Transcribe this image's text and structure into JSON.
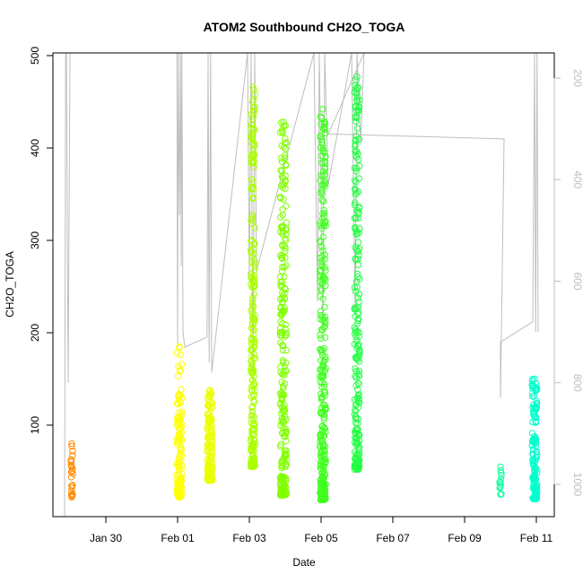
{
  "chart_data": {
    "type": "scatter",
    "title": "ATOM2 Southbound CH2O_TOGA",
    "xlabel": "Date",
    "ylabel": "CH2O_TOGA",
    "xlim": [
      -2.4,
      11.4
    ],
    "x_unit": "days from Jan 30",
    "ylim": [
      10,
      505
    ],
    "y_ticks": [
      100,
      200,
      300,
      400,
      500
    ],
    "x_ticks": [
      {
        "value": 0,
        "label": "Jan 30"
      },
      {
        "value": 2,
        "label": "Feb 01"
      },
      {
        "value": 4,
        "label": "Feb 03"
      },
      {
        "value": 6,
        "label": "Feb 05"
      },
      {
        "value": 8,
        "label": "Feb 07"
      },
      {
        "value": 10,
        "label": "Feb 09"
      },
      {
        "value": 12,
        "label": "Feb 11"
      }
    ],
    "right_axis": {
      "ticks": [
        200,
        400,
        600,
        800,
        1000
      ],
      "inverted": true,
      "color": "#bebebe"
    },
    "colors": {
      "leg_jan28": "#ff8c00",
      "leg_feb01": "#ffff00",
      "leg_feb0110": "#eaff00",
      "leg_feb03": "#aaff00",
      "leg_feb04": "#80ff00",
      "leg_feb05": "#40ff20",
      "leg_feb06": "#22ff44",
      "leg_feb10": "#10ffa0",
      "leg_feb11": "#00ffcc",
      "altitude_trace": "#bebebe"
    },
    "series": [
      {
        "group": "leg_jan28",
        "x_center": -0.95,
        "x_spread": 0.03,
        "y_min": 22,
        "y_max": 80,
        "count": 22
      },
      {
        "group": "leg_feb01",
        "x_center": 2.05,
        "x_spread": 0.07,
        "y_min": 22,
        "y_max": 185,
        "count": 120
      },
      {
        "group": "leg_feb0110",
        "x_center": 2.9,
        "x_spread": 0.07,
        "y_min": 40,
        "y_max": 138,
        "count": 140
      },
      {
        "group": "leg_feb03",
        "x_center": 4.1,
        "x_spread": 0.06,
        "y_min": 55,
        "y_max": 466,
        "count": 230
      },
      {
        "group": "leg_feb04",
        "x_center": 4.95,
        "x_spread": 0.09,
        "y_min": 24,
        "y_max": 428,
        "count": 240
      },
      {
        "group": "leg_feb05",
        "x_center": 6.05,
        "x_spread": 0.08,
        "y_min": 19,
        "y_max": 442,
        "count": 280
      },
      {
        "group": "leg_feb06",
        "x_center": 7.0,
        "x_spread": 0.07,
        "y_min": 52,
        "y_max": 477,
        "count": 220
      },
      {
        "group": "leg_feb10",
        "x_center": 11.0,
        "x_spread": 0.03,
        "y_min": 25,
        "y_max": 55,
        "count": 12
      },
      {
        "group": "leg_feb11",
        "x_center": 11.95,
        "x_spread": 0.07,
        "y_min": 20,
        "y_max": 150,
        "count": 130
      }
    ],
    "altitude_trace": [
      [
        -1.15,
        1150
      ],
      [
        -1.12,
        80
      ],
      [
        -1.1,
        80
      ],
      [
        -1.05,
        800
      ],
      [
        -1.0,
        80
      ],
      [
        1.98,
        80
      ],
      [
        2.0,
        730
      ],
      [
        2.02,
        80
      ],
      [
        2.05,
        470
      ],
      [
        2.08,
        80
      ],
      [
        2.1,
        570
      ],
      [
        2.12,
        80
      ],
      [
        2.15,
        700
      ],
      [
        2.2,
        730
      ],
      [
        2.82,
        710
      ],
      [
        2.85,
        80
      ],
      [
        2.88,
        760
      ],
      [
        2.92,
        80
      ],
      [
        2.95,
        780
      ],
      [
        3.95,
        80
      ],
      [
        4.0,
        600
      ],
      [
        4.05,
        80
      ],
      [
        4.1,
        800
      ],
      [
        4.15,
        80
      ],
      [
        4.2,
        580
      ],
      [
        5.8,
        80
      ],
      [
        5.9,
        640
      ],
      [
        5.95,
        80
      ],
      [
        6.05,
        690
      ],
      [
        6.1,
        80
      ],
      [
        6.2,
        410
      ],
      [
        6.85,
        80
      ],
      [
        6.95,
        660
      ],
      [
        7.0,
        80
      ],
      [
        7.1,
        330
      ],
      [
        7.2,
        80
      ],
      [
        6.2,
        310
      ],
      [
        11.1,
        320
      ],
      [
        11.0,
        830
      ],
      [
        11.0,
        720
      ],
      [
        11.9,
        680
      ],
      [
        11.95,
        80
      ],
      [
        11.98,
        700
      ],
      [
        12.02,
        80
      ],
      [
        12.05,
        700
      ]
    ]
  }
}
